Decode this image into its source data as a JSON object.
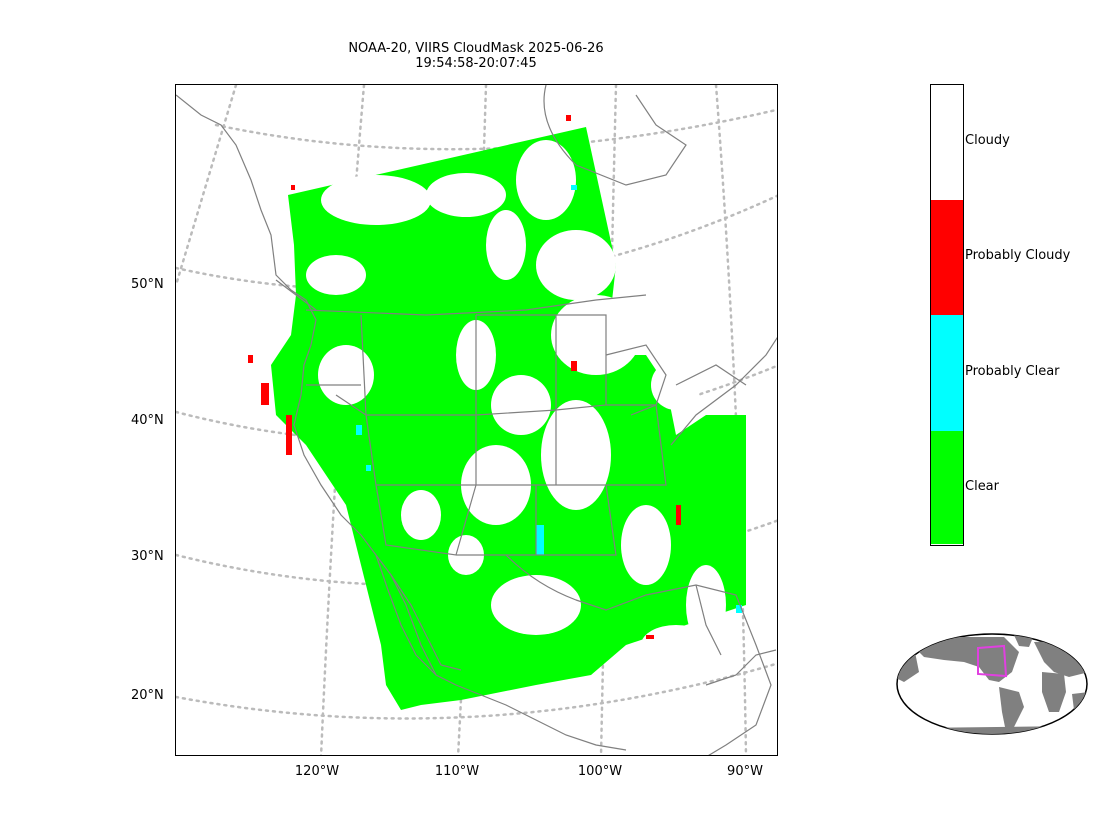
{
  "title": {
    "line1": "NOAA-20, VIIRS CloudMask 2025-06-26",
    "line2": "19:54:58-20:07:45"
  },
  "latitude_labels": [
    "50°N",
    "40°N",
    "30°N",
    "20°N"
  ],
  "longitude_labels": [
    "120°W",
    "110°W",
    "100°W",
    "90°W"
  ],
  "legend": {
    "categories": [
      {
        "label": "Cloudy",
        "color": "#ffffff"
      },
      {
        "label": "Probably Cloudy",
        "color": "#ff0000"
      },
      {
        "label": "Probably Clear",
        "color": "#00ffff"
      },
      {
        "label": "Clear",
        "color": "#00ff00"
      }
    ]
  },
  "map_colors": {
    "coastline": "#808080",
    "graticule": "#bbbbbb",
    "inset_land": "#808080",
    "inset_box": "#e040e0"
  }
}
